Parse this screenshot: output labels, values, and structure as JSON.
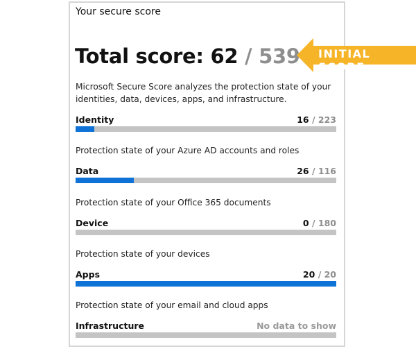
{
  "card": {
    "title": "Your secure score",
    "total_label": "Total score:",
    "total_value": "62",
    "total_max": "/ 539",
    "description": "Microsoft Secure Score analyzes the protection state of your identities, data, devices, apps, and infrastructure.",
    "categories": [
      {
        "label": "Identity",
        "score": "16",
        "max": "/ 223",
        "progress": 0.072,
        "description": "Protection state of your Azure AD accounts and roles"
      },
      {
        "label": "Data",
        "score": "26",
        "max": "/ 116",
        "progress": 0.224,
        "description": "Protection state of your Office 365 documents"
      },
      {
        "label": "Device",
        "score": "0",
        "max": "/ 180",
        "progress": 0,
        "description": "Protection state of your devices"
      },
      {
        "label": "Apps",
        "score": "20",
        "max": "/ 20",
        "progress": 1,
        "description": "Protection state of your email and cloud apps"
      },
      {
        "label": "Infrastructure",
        "no_data": "No data to show",
        "progress": 0
      }
    ]
  },
  "callout": {
    "text": "INITIAL SCORE",
    "color": "#f6b428"
  },
  "colors": {
    "bar_fill": "#0f72d6",
    "bar_track": "#c4c4c4"
  }
}
